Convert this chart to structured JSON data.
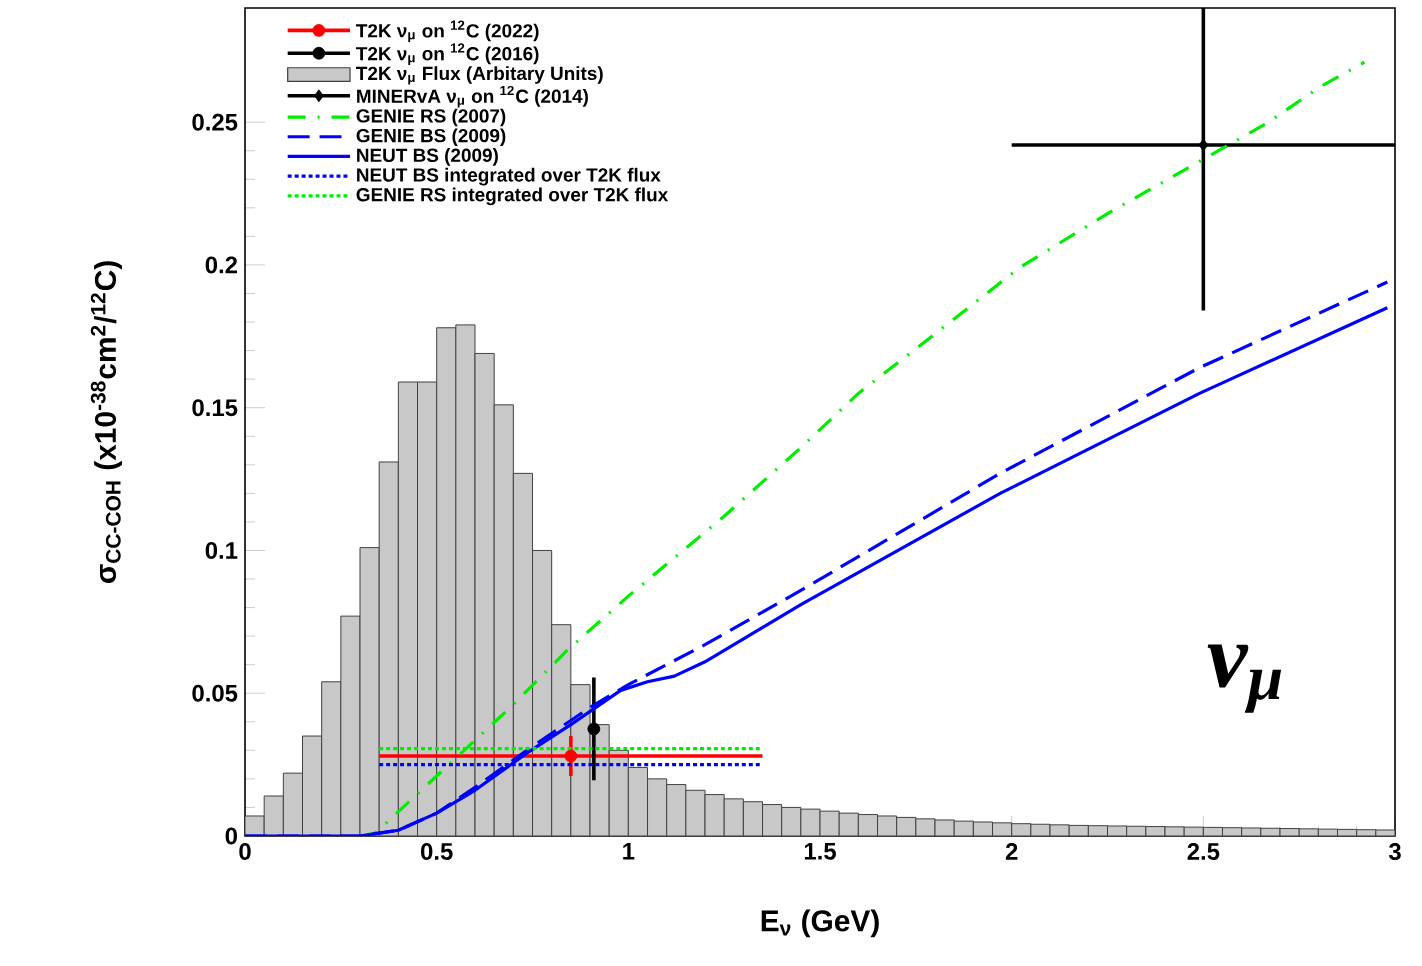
{
  "chart_data": {
    "type": "line",
    "xlabel": "E$_{ν}$ (GeV)",
    "ylabel": "σ$_{CC-COH}$ (x10$^{-38}$cm$^{2}$/$^{12}$C)",
    "xlim": [
      0,
      3
    ],
    "ylim": [
      0,
      0.29
    ],
    "xticks": [
      0,
      0.5,
      1,
      1.5,
      2,
      2.5,
      3
    ],
    "yticks": [
      0,
      0.05,
      0.1,
      0.15,
      0.2,
      0.25
    ],
    "legend": "top left",
    "annotations": [
      "ν$_{μ}$"
    ],
    "series": [
      {
        "name": "T2K ν$_{μ}$ on $^{12}$C (2022)",
        "type": "scatter",
        "color": "#ff0000",
        "marker": "circle",
        "x": [
          0.85
        ],
        "values": [
          0.028
        ],
        "errors": [
          0.007
        ],
        "xerrors": [
          0.5
        ]
      },
      {
        "name": "T2K ν$_{μ}$ on $^{12}$C (2016)",
        "type": "scatter",
        "color": "#000000",
        "marker": "circle",
        "x": [
          0.91
        ],
        "values": [
          0.0375
        ],
        "errors": [
          0.018
        ]
      },
      {
        "name": "T2K ν$_{μ}$ Flux (Arbitary Units)",
        "type": "histogram",
        "color": "#c8c8c8",
        "bins": [
          0,
          0.05,
          0.1,
          0.15,
          0.2,
          0.25,
          0.3,
          0.35,
          0.4,
          0.45,
          0.5,
          0.55,
          0.6,
          0.65,
          0.7,
          0.75,
          0.8,
          0.85,
          0.9,
          0.95,
          1.0,
          1.05,
          1.1,
          1.15,
          1.2,
          1.25,
          1.3,
          1.35,
          1.4,
          1.45,
          1.5,
          1.55,
          1.6,
          1.65,
          1.7,
          1.75,
          1.8,
          1.85,
          1.9,
          1.95,
          2.0,
          2.05,
          2.1,
          2.15,
          2.2,
          2.25,
          2.3,
          2.35,
          2.4,
          2.45,
          2.5,
          2.55,
          2.6,
          2.65,
          2.7,
          2.75,
          2.8,
          2.85,
          2.9,
          2.95,
          3.0
        ],
        "values": [
          0.007,
          0.014,
          0.022,
          0.035,
          0.054,
          0.077,
          0.101,
          0.131,
          0.159,
          0.159,
          0.178,
          0.179,
          0.169,
          0.151,
          0.127,
          0.1,
          0.074,
          0.053,
          0.039,
          0.03,
          0.024,
          0.02,
          0.018,
          0.016,
          0.0145,
          0.013,
          0.012,
          0.011,
          0.01,
          0.0094,
          0.0087,
          0.008,
          0.0075,
          0.007,
          0.0065,
          0.006,
          0.0056,
          0.0052,
          0.0049,
          0.0046,
          0.0043,
          0.0041,
          0.0039,
          0.0037,
          0.0036,
          0.0035,
          0.0034,
          0.0033,
          0.0032,
          0.0031,
          0.003,
          0.0029,
          0.0028,
          0.0027,
          0.0026,
          0.0025,
          0.0024,
          0.0023,
          0.0022,
          0.0021
        ]
      },
      {
        "name": "MINERvA ν$_{μ}$ on $^{12}$C (2014)",
        "type": "scatter",
        "color": "#000000",
        "marker": "diamond",
        "x": [
          2.5
        ],
        "values": [
          0.242
        ],
        "errors": [
          [
            0.184,
            0.29
          ]
        ],
        "xerrors": [
          0.5
        ]
      },
      {
        "name": "GENIE RS (2007)",
        "color": "#00ee00",
        "line_style": "dashdot",
        "x": [
          0.3,
          0.34,
          0.5,
          0.7,
          0.84,
          1.0,
          1.25,
          1.45,
          1.6,
          1.83,
          2.02,
          2.25,
          2.5,
          2.67,
          2.8,
          2.92
        ],
        "values": [
          0,
          0.001,
          0.021,
          0.046,
          0.065,
          0.084,
          0.112,
          0.136,
          0.155,
          0.179,
          0.199,
          0.218,
          0.237,
          0.25,
          0.262,
          0.271
        ]
      },
      {
        "name": "GENIE BS (2009)",
        "color": "#0000ff",
        "line_style": "dashed",
        "x": [
          0,
          0.3,
          0.4,
          0.5,
          0.6,
          0.735,
          0.9,
          1.0,
          1.2,
          1.45,
          1.97,
          2.49,
          2.98
        ],
        "values": [
          0,
          0,
          0.002,
          0.008,
          0.017,
          0.03,
          0.045,
          0.053,
          0.067,
          0.086,
          0.127,
          0.164,
          0.194
        ]
      },
      {
        "name": "NEUT BS (2009)",
        "color": "#0000ff",
        "line_style": "solid",
        "x": [
          0,
          0.3,
          0.4,
          0.5,
          0.6,
          0.735,
          0.85,
          0.98,
          1.05,
          1.12,
          1.2,
          1.45,
          1.97,
          2.49,
          2.98
        ],
        "values": [
          0,
          0,
          0.002,
          0.008,
          0.016,
          0.029,
          0.039,
          0.051,
          0.054,
          0.056,
          0.061,
          0.081,
          0.12,
          0.155,
          0.185
        ]
      },
      {
        "name": "NEUT BS integrated over T2K flux",
        "color": "#0000ff",
        "line_style": "dotted",
        "x": [
          0.35,
          1.35
        ],
        "values": [
          0.025,
          0.025
        ]
      },
      {
        "name": "GENIE RS integrated over T2K flux",
        "color": "#00ee00",
        "line_style": "dotted",
        "x": [
          0.35,
          1.35
        ],
        "values": [
          0.0306,
          0.0306
        ]
      }
    ]
  }
}
